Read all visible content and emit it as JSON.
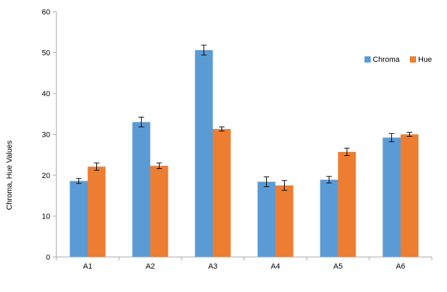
{
  "chart_data": {
    "type": "bar",
    "title": "",
    "xlabel": "",
    "ylabel": "Chroma, Hue Values",
    "ylim": [
      0,
      60
    ],
    "yticks": [
      0,
      10,
      20,
      30,
      40,
      50,
      60
    ],
    "categories": [
      "A1",
      "A2",
      "A3",
      "A4",
      "A5",
      "A6"
    ],
    "series": [
      {
        "name": "Chroma",
        "color": "#5B9BD5",
        "values": [
          18.6,
          33.0,
          50.6,
          18.4,
          18.9,
          29.2
        ],
        "errors": [
          0.6,
          1.2,
          1.2,
          1.2,
          0.8,
          1.0
        ]
      },
      {
        "name": "Hue",
        "color": "#ED7D31",
        "values": [
          22.1,
          22.3,
          31.3,
          17.5,
          25.7,
          30.0
        ],
        "errors": [
          0.9,
          0.7,
          0.5,
          1.2,
          0.9,
          0.5
        ]
      }
    ],
    "grid": false,
    "error_bars": true,
    "legend_position": "right"
  }
}
